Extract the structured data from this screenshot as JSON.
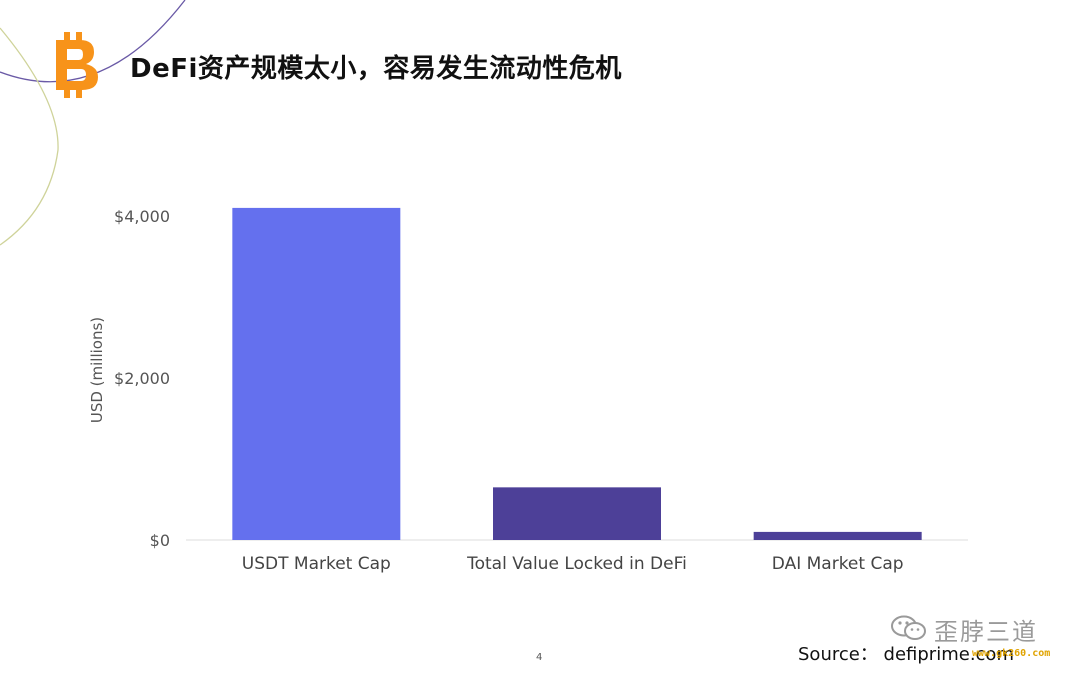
{
  "slide": {
    "title": "DeFi资产规模太小，容易发生流动性危机",
    "page_number": "4",
    "source": "Source：  defiprime.com"
  },
  "logo": {
    "icon": "bitcoin-icon",
    "color": "#f7931a"
  },
  "watermark": {
    "icon": "wechat-icon",
    "text": "歪脖三道",
    "url": "www.gk260.com"
  },
  "chart_data": {
    "type": "bar",
    "title": "",
    "xlabel": "",
    "ylabel": "USD (millions)",
    "categories": [
      "USDT Market Cap",
      "Total Value Locked in DeFi",
      "DAI Market Cap"
    ],
    "values": [
      4100,
      650,
      100
    ],
    "bar_colors": [
      "#6470ee",
      "#4d4098",
      "#4d4098"
    ],
    "yticks": [
      0,
      2000,
      4000
    ],
    "ytick_labels": [
      "$0",
      "$2,000",
      "$4,000"
    ],
    "ylim": [
      0,
      4300
    ],
    "grid": false,
    "legend": false
  }
}
